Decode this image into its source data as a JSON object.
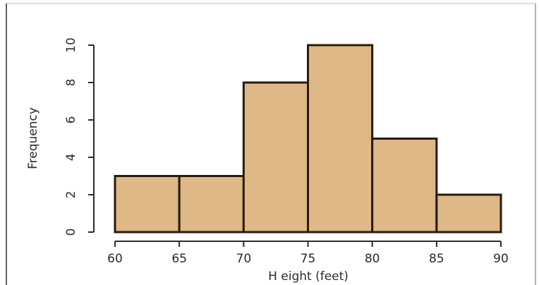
{
  "chart_data": {
    "type": "bar",
    "title": "",
    "xlabel": "H eight (feet)",
    "ylabel": "Frequency",
    "bins": [
      {
        "start": 60,
        "end": 65,
        "count": 3
      },
      {
        "start": 65,
        "end": 70,
        "count": 3
      },
      {
        "start": 70,
        "end": 75,
        "count": 8
      },
      {
        "start": 75,
        "end": 80,
        "count": 10
      },
      {
        "start": 80,
        "end": 85,
        "count": 5
      },
      {
        "start": 85,
        "end": 90,
        "count": 2
      }
    ],
    "xlim": [
      60,
      90
    ],
    "ylim": [
      0,
      10
    ],
    "x_ticks": [
      "60",
      "65",
      "70",
      "75",
      "80",
      "85",
      "90"
    ],
    "y_ticks": [
      "0",
      "2",
      "4",
      "6",
      "8",
      "10"
    ],
    "grid": false,
    "colors": {
      "bar_fill": "#deb887",
      "bar_stroke": "#2a1a0a",
      "axis": "#2b2b2b",
      "frame_left": "#333333",
      "frame_right": "#9a9a9a",
      "frame_top": "#bbbbbb"
    }
  }
}
